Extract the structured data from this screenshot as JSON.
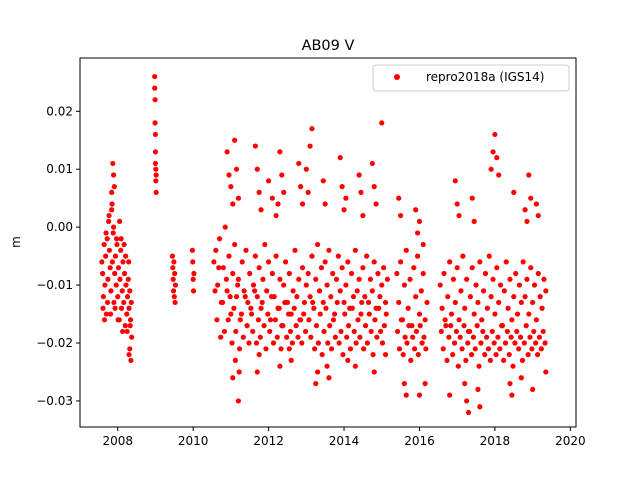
{
  "chart_data": {
    "type": "scatter",
    "title": "AB09 V",
    "xlabel": "",
    "ylabel": "m",
    "xlim": [
      2007.0,
      2020.15
    ],
    "ylim": [
      -0.0345,
      0.0292
    ],
    "xticks": [
      2008,
      2010,
      2012,
      2014,
      2016,
      2018,
      2020
    ],
    "xtick_labels": [
      "2008",
      "2010",
      "2012",
      "2014",
      "2016",
      "2018",
      "2020"
    ],
    "yticks": [
      -0.03,
      -0.02,
      -0.01,
      0.0,
      0.01,
      0.02
    ],
    "ytick_labels": [
      "−0.03",
      "−0.02",
      "−0.01",
      "0.00",
      "0.01",
      "0.02"
    ],
    "grid": false,
    "legend_position": "top-right",
    "series": [
      {
        "name": "repro2018a (IGS14)",
        "color": "#ff0000",
        "marker": "circle",
        "x": [
          2007.58,
          2007.6,
          2007.62,
          2007.64,
          2007.66,
          2007.68,
          2007.7,
          2007.72,
          2007.74,
          2007.76,
          2007.78,
          2007.8,
          2007.82,
          2007.84,
          2007.86,
          2007.88,
          2007.9,
          2007.92,
          2007.94,
          2007.96,
          2007.98,
          2008.0,
          2008.02,
          2008.04,
          2008.06,
          2008.08,
          2008.1,
          2008.12,
          2008.14,
          2008.16,
          2008.18,
          2008.2,
          2008.22,
          2008.24,
          2008.26,
          2008.28,
          2008.3,
          2008.32,
          2008.34,
          2008.36,
          2007.61,
          2007.65,
          2007.69,
          2007.73,
          2007.77,
          2007.81,
          2007.85,
          2007.89,
          2007.93,
          2007.97,
          2008.01,
          2008.05,
          2008.09,
          2008.13,
          2008.17,
          2008.21,
          2008.25,
          2008.29,
          2008.33,
          2007.87,
          2007.89,
          2007.91,
          2007.84,
          2008.3,
          2008.32,
          2008.35,
          2008.37,
          2008.98,
          2008.98,
          2008.99,
          2008.99,
          2009.0,
          2009.0,
          2009.0,
          2009.01,
          2009.01,
          2009.02,
          2009.02,
          2009.45,
          2009.46,
          2009.47,
          2009.48,
          2009.49,
          2009.5,
          2009.51,
          2009.52,
          2009.53,
          2009.98,
          2009.99,
          2010.0,
          2010.01,
          2010.02,
          2010.55,
          2010.6,
          2010.65,
          2010.7,
          2010.75,
          2010.8,
          2010.85,
          2010.9,
          2010.95,
          2011.0,
          2011.05,
          2011.1,
          2011.15,
          2011.2,
          2011.25,
          2011.3,
          2011.35,
          2011.4,
          2011.45,
          2011.5,
          2011.55,
          2011.6,
          2011.65,
          2011.7,
          2011.75,
          2011.8,
          2011.85,
          2011.9,
          2011.95,
          2012.0,
          2012.05,
          2012.1,
          2012.15,
          2012.2,
          2012.25,
          2012.3,
          2012.35,
          2012.4,
          2012.45,
          2012.5,
          2012.55,
          2012.6,
          2012.65,
          2012.7,
          2012.75,
          2012.8,
          2012.85,
          2012.9,
          2012.95,
          2013.0,
          2010.58,
          2010.63,
          2010.68,
          2010.73,
          2010.78,
          2010.83,
          2010.88,
          2010.93,
          2010.98,
          2011.03,
          2011.08,
          2011.13,
          2011.18,
          2011.23,
          2011.28,
          2011.33,
          2011.38,
          2011.43,
          2011.48,
          2011.53,
          2011.58,
          2011.63,
          2011.68,
          2011.73,
          2011.78,
          2011.83,
          2011.88,
          2011.93,
          2011.98,
          2012.03,
          2012.08,
          2012.13,
          2012.18,
          2012.23,
          2012.28,
          2012.33,
          2012.38,
          2012.43,
          2012.48,
          2012.53,
          2012.58,
          2012.63,
          2012.68,
          2012.73,
          2012.78,
          2012.83,
          2012.88,
          2012.93,
          2012.98,
          2010.9,
          2010.95,
          2011.0,
          2011.05,
          2011.1,
          2011.15,
          2011.2,
          2011.65,
          2011.7,
          2011.75,
          2011.8,
          2012.0,
          2012.1,
          2012.2,
          2012.25,
          2012.3,
          2012.35,
          2012.4,
          2012.8,
          2012.85,
          2012.9,
          2011.05,
          2011.12,
          2011.2,
          2011.22,
          2011.7,
          2011.75,
          2012.3,
          2012.55,
          2012.6,
          2013.05,
          2013.1,
          2013.15,
          2013.2,
          2013.25,
          2013.3,
          2013.35,
          2013.4,
          2013.45,
          2013.5,
          2013.55,
          2013.6,
          2013.65,
          2013.7,
          2013.75,
          2013.8,
          2013.85,
          2013.9,
          2013.95,
          2014.0,
          2014.05,
          2014.1,
          2014.15,
          2014.2,
          2014.25,
          2014.3,
          2014.35,
          2014.4,
          2014.45,
          2014.5,
          2014.55,
          2014.6,
          2014.65,
          2014.7,
          2014.75,
          2014.8,
          2014.85,
          2014.9,
          2014.95,
          2015.0,
          2015.05,
          2015.1,
          2015.15,
          2013.07,
          2013.12,
          2013.17,
          2013.22,
          2013.27,
          2013.32,
          2013.37,
          2013.42,
          2013.47,
          2013.52,
          2013.57,
          2013.62,
          2013.67,
          2013.72,
          2013.77,
          2013.82,
          2013.87,
          2013.92,
          2013.97,
          2014.02,
          2014.07,
          2014.12,
          2014.17,
          2014.22,
          2014.27,
          2014.32,
          2014.37,
          2014.42,
          2014.47,
          2014.52,
          2014.57,
          2014.62,
          2014.67,
          2014.72,
          2014.77,
          2014.82,
          2014.87,
          2014.92,
          2014.97,
          2015.02,
          2015.07,
          2015.12,
          2013.0,
          2013.05,
          2013.1,
          2013.15,
          2013.45,
          2013.5,
          2013.9,
          2013.95,
          2014.0,
          2014.05,
          2014.4,
          2014.45,
          2014.5,
          2014.75,
          2014.8,
          2014.85,
          2015.0,
          2013.25,
          2013.3,
          2013.55,
          2013.6,
          2014.1,
          2014.3,
          2014.8,
          2015.1,
          2015.4,
          2015.45,
          2015.5,
          2015.55,
          2015.6,
          2015.65,
          2015.7,
          2015.75,
          2015.8,
          2015.85,
          2015.9,
          2015.95,
          2016.0,
          2016.05,
          2016.1,
          2016.15,
          2016.2,
          2015.42,
          2015.47,
          2015.52,
          2015.57,
          2015.62,
          2015.67,
          2015.72,
          2015.77,
          2015.82,
          2015.87,
          2015.92,
          2015.97,
          2016.02,
          2016.07,
          2016.12,
          2016.17,
          2015.45,
          2015.5,
          2015.9,
          2015.95,
          2016.0,
          2016.1,
          2015.6,
          2015.65,
          2016.15,
          2016.0,
          2016.55,
          2016.6,
          2016.65,
          2016.7,
          2016.75,
          2016.8,
          2016.85,
          2016.9,
          2016.95,
          2017.0,
          2017.05,
          2017.1,
          2017.15,
          2017.2,
          2017.25,
          2017.3,
          2017.35,
          2017.4,
          2017.45,
          2017.5,
          2017.55,
          2017.6,
          2017.65,
          2017.7,
          2017.75,
          2017.8,
          2017.85,
          2017.9,
          2017.95,
          2018.0,
          2018.05,
          2018.1,
          2018.15,
          2018.2,
          2018.25,
          2018.3,
          2018.35,
          2018.4,
          2018.45,
          2018.5,
          2018.55,
          2018.6,
          2018.65,
          2018.7,
          2018.75,
          2018.8,
          2018.85,
          2018.9,
          2018.95,
          2019.0,
          2019.05,
          2019.1,
          2019.15,
          2019.2,
          2019.25,
          2019.3,
          2019.35,
          2016.58,
          2016.63,
          2016.68,
          2016.73,
          2016.78,
          2016.83,
          2016.88,
          2016.93,
          2016.98,
          2017.03,
          2017.08,
          2017.13,
          2017.18,
          2017.23,
          2017.28,
          2017.33,
          2017.38,
          2017.43,
          2017.48,
          2017.53,
          2017.58,
          2017.63,
          2017.68,
          2017.73,
          2017.78,
          2017.83,
          2017.88,
          2017.93,
          2017.98,
          2018.03,
          2018.08,
          2018.13,
          2018.18,
          2018.23,
          2018.28,
          2018.33,
          2018.38,
          2018.43,
          2018.48,
          2018.53,
          2018.58,
          2018.63,
          2018.68,
          2018.73,
          2018.78,
          2018.83,
          2018.88,
          2018.93,
          2018.98,
          2019.03,
          2019.08,
          2019.13,
          2019.18,
          2019.23,
          2019.28,
          2019.33,
          2016.95,
          2017.0,
          2017.05,
          2017.4,
          2017.45,
          2017.9,
          2017.95,
          2018.0,
          2018.05,
          2018.1,
          2018.5,
          2018.8,
          2018.85,
          2018.9,
          2018.95,
          2019.1,
          2019.15,
          2016.8,
          2017.2,
          2017.25,
          2017.3,
          2017.55,
          2017.6,
          2018.4,
          2018.45,
          2018.7,
          2019.0,
          2019.35
        ],
        "y": [
          -0.006,
          -0.008,
          -0.012,
          -0.003,
          -0.01,
          -0.005,
          -0.015,
          -0.002,
          -0.009,
          0.001,
          -0.004,
          -0.007,
          -0.011,
          0.003,
          -0.006,
          -0.001,
          -0.013,
          -0.008,
          -0.005,
          -0.01,
          -0.003,
          -0.012,
          -0.007,
          -0.016,
          -0.009,
          -0.004,
          -0.014,
          -0.011,
          -0.006,
          -0.013,
          -0.008,
          -0.017,
          -0.01,
          -0.015,
          -0.012,
          -0.009,
          -0.014,
          -0.011,
          -0.016,
          -0.013,
          -0.014,
          -0.016,
          -0.001,
          -0.013,
          0.002,
          -0.015,
          0.004,
          0.0,
          -0.014,
          -0.002,
          -0.016,
          0.001,
          -0.002,
          -0.018,
          -0.003,
          -0.005,
          -0.018,
          -0.006,
          -0.017,
          0.011,
          0.009,
          0.007,
          0.006,
          -0.022,
          -0.021,
          -0.023,
          -0.019,
          0.026,
          0.024,
          0.022,
          0.018,
          0.016,
          0.013,
          0.011,
          0.01,
          0.008,
          0.006,
          0.009,
          -0.005,
          -0.007,
          -0.009,
          -0.011,
          -0.006,
          -0.012,
          -0.008,
          -0.013,
          -0.01,
          -0.004,
          -0.006,
          -0.009,
          -0.011,
          -0.008,
          -0.006,
          -0.004,
          -0.01,
          -0.002,
          -0.013,
          -0.007,
          0.0,
          -0.011,
          -0.005,
          -0.015,
          -0.008,
          -0.003,
          -0.012,
          -0.009,
          -0.016,
          -0.006,
          -0.011,
          -0.004,
          -0.013,
          -0.008,
          -0.015,
          -0.01,
          -0.005,
          -0.012,
          -0.007,
          -0.014,
          -0.009,
          -0.003,
          -0.011,
          -0.006,
          -0.016,
          -0.008,
          -0.012,
          -0.005,
          -0.014,
          -0.009,
          -0.017,
          -0.01,
          -0.006,
          -0.013,
          -0.008,
          -0.015,
          -0.011,
          -0.004,
          -0.012,
          -0.009,
          -0.016,
          -0.007,
          -0.013,
          -0.01,
          -0.011,
          -0.016,
          -0.007,
          -0.019,
          -0.013,
          -0.018,
          -0.009,
          -0.016,
          -0.012,
          -0.02,
          -0.014,
          -0.018,
          -0.01,
          -0.021,
          -0.015,
          -0.019,
          -0.012,
          -0.017,
          -0.02,
          -0.014,
          -0.018,
          -0.011,
          -0.02,
          -0.016,
          -0.019,
          -0.013,
          -0.017,
          -0.021,
          -0.015,
          -0.018,
          -0.012,
          -0.02,
          -0.016,
          -0.019,
          -0.014,
          -0.021,
          -0.017,
          -0.013,
          -0.019,
          -0.015,
          -0.018,
          -0.02,
          -0.014,
          -0.017,
          -0.019,
          -0.016,
          -0.02,
          -0.015,
          -0.018,
          0.013,
          0.009,
          0.007,
          0.004,
          0.015,
          0.01,
          0.005,
          0.014,
          0.01,
          0.006,
          0.003,
          0.008,
          0.005,
          0.002,
          0.004,
          0.013,
          0.009,
          0.006,
          0.011,
          0.007,
          0.004,
          -0.026,
          -0.023,
          -0.03,
          -0.025,
          -0.025,
          -0.022,
          -0.024,
          -0.021,
          -0.023,
          -0.008,
          -0.012,
          -0.005,
          -0.014,
          -0.009,
          -0.003,
          -0.011,
          -0.007,
          -0.013,
          -0.006,
          -0.01,
          -0.004,
          -0.012,
          -0.008,
          -0.015,
          -0.009,
          -0.005,
          -0.011,
          -0.007,
          -0.013,
          -0.01,
          -0.006,
          -0.014,
          -0.008,
          -0.012,
          -0.004,
          -0.011,
          -0.009,
          -0.015,
          -0.007,
          -0.012,
          -0.005,
          -0.013,
          -0.009,
          -0.011,
          -0.006,
          -0.014,
          -0.008,
          -0.012,
          -0.01,
          -0.007,
          -0.013,
          -0.009,
          -0.016,
          -0.019,
          -0.013,
          -0.021,
          -0.017,
          -0.02,
          -0.015,
          -0.022,
          -0.018,
          -0.014,
          -0.02,
          -0.017,
          -0.021,
          -0.016,
          -0.019,
          -0.013,
          -0.02,
          -0.018,
          -0.022,
          -0.015,
          -0.019,
          -0.017,
          -0.021,
          -0.014,
          -0.018,
          -0.02,
          -0.016,
          -0.019,
          -0.013,
          -0.021,
          -0.017,
          -0.02,
          -0.015,
          -0.018,
          -0.022,
          -0.016,
          -0.019,
          -0.014,
          -0.018,
          -0.02,
          -0.017,
          -0.015,
          0.01,
          0.006,
          0.014,
          0.017,
          0.008,
          0.004,
          0.012,
          0.007,
          0.003,
          0.005,
          0.009,
          0.006,
          0.002,
          0.011,
          0.007,
          0.004,
          0.018,
          -0.027,
          -0.025,
          -0.024,
          -0.026,
          -0.023,
          -0.024,
          -0.025,
          -0.022,
          -0.008,
          -0.013,
          -0.006,
          -0.016,
          -0.01,
          -0.004,
          -0.014,
          -0.009,
          -0.017,
          -0.007,
          -0.012,
          -0.005,
          -0.015,
          -0.011,
          -0.008,
          -0.016,
          -0.013,
          -0.018,
          -0.021,
          -0.016,
          -0.022,
          -0.019,
          -0.02,
          -0.017,
          -0.023,
          -0.019,
          -0.021,
          -0.018,
          -0.022,
          -0.017,
          -0.02,
          -0.019,
          -0.021,
          0.005,
          0.002,
          0.003,
          -0.001,
          0.001,
          -0.003,
          -0.027,
          -0.029,
          -0.027,
          -0.029,
          -0.01,
          -0.014,
          -0.008,
          -0.017,
          -0.012,
          -0.006,
          -0.015,
          -0.009,
          -0.013,
          -0.007,
          -0.016,
          -0.011,
          -0.005,
          -0.014,
          -0.009,
          -0.018,
          -0.012,
          -0.007,
          -0.015,
          -0.01,
          -0.013,
          -0.006,
          -0.016,
          -0.011,
          -0.008,
          -0.014,
          -0.005,
          -0.012,
          -0.009,
          -0.015,
          -0.007,
          -0.013,
          -0.01,
          -0.017,
          -0.011,
          -0.006,
          -0.014,
          -0.009,
          -0.016,
          -0.012,
          -0.008,
          -0.015,
          -0.01,
          -0.013,
          -0.006,
          -0.012,
          -0.009,
          -0.015,
          -0.007,
          -0.013,
          -0.01,
          -0.016,
          -0.008,
          -0.012,
          -0.014,
          -0.009,
          -0.011,
          -0.018,
          -0.021,
          -0.016,
          -0.023,
          -0.019,
          -0.017,
          -0.022,
          -0.02,
          -0.018,
          -0.024,
          -0.019,
          -0.021,
          -0.017,
          -0.023,
          -0.02,
          -0.018,
          -0.022,
          -0.019,
          -0.021,
          -0.017,
          -0.024,
          -0.02,
          -0.018,
          -0.022,
          -0.019,
          -0.021,
          -0.023,
          -0.018,
          -0.02,
          -0.022,
          -0.019,
          -0.021,
          -0.017,
          -0.023,
          -0.02,
          -0.018,
          -0.022,
          -0.019,
          -0.024,
          -0.02,
          -0.018,
          -0.021,
          -0.019,
          -0.023,
          -0.02,
          -0.017,
          -0.022,
          -0.019,
          -0.021,
          -0.018,
          -0.02,
          -0.022,
          -0.019,
          -0.021,
          -0.018,
          -0.02,
          0.008,
          0.004,
          0.002,
          0.005,
          0.001,
          0.01,
          0.013,
          0.016,
          0.012,
          0.009,
          0.006,
          0.003,
          0.001,
          0.009,
          0.005,
          0.004,
          0.002,
          -0.029,
          -0.027,
          -0.03,
          -0.032,
          -0.028,
          -0.031,
          -0.027,
          -0.029,
          -0.026,
          -0.028,
          -0.025
        ]
      }
    ]
  }
}
